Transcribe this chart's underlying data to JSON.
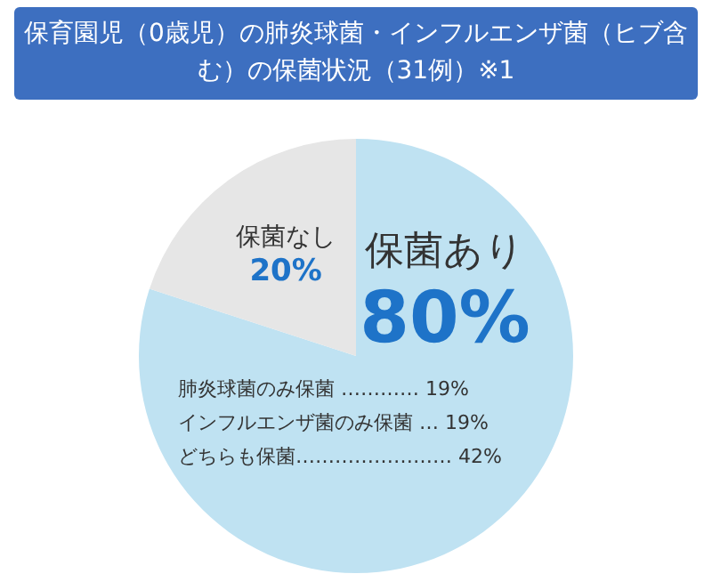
{
  "chart_data": {
    "type": "pie",
    "title": "保育園児（0歳児）の肺炎球菌・インフルエンザ菌（ヒブ含む）の保菌状況（31例）※1",
    "categories": [
      "保菌あり",
      "保菌なし"
    ],
    "values": [
      80,
      20
    ],
    "colors": [
      "#bfe2f2",
      "#e6e6e6"
    ],
    "value_labels": [
      "80%",
      "20%"
    ],
    "annotations": [
      "肺炎球菌のみ保菌 ………… 19%",
      "インフルエンザ菌のみ保菌 … 19%",
      "どちらも保菌…………………… 42%"
    ]
  }
}
